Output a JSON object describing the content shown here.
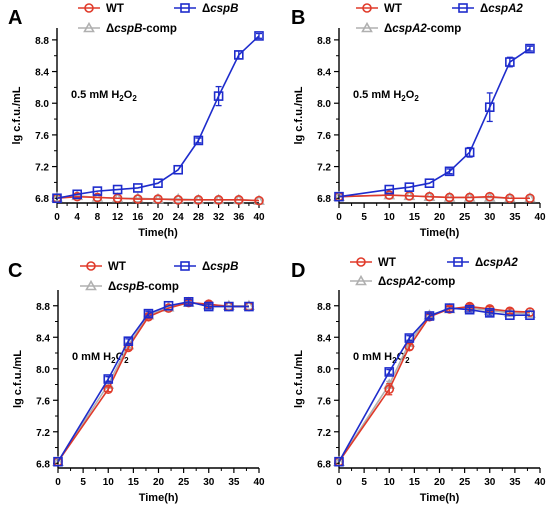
{
  "chart_data": [
    {
      "panel_label": "A",
      "type": "line",
      "condition_label": "0.5 mM H",
      "condition_sub": "2",
      "condition_tail": "O",
      "condition_sub2": "2",
      "xlabel": "Time(h)",
      "ylabel": "lg c.f.u./mL",
      "xlim": [
        0,
        40
      ],
      "ylim": [
        6.74,
        8.95
      ],
      "xticks": [
        0,
        4,
        8,
        12,
        16,
        20,
        24,
        28,
        32,
        36,
        40
      ],
      "yticks": [
        6.8,
        7.2,
        7.6,
        8.0,
        8.4,
        8.8
      ],
      "grid": false,
      "legend": "top",
      "series": [
        {
          "name": "WT",
          "label_parts": [
            "WT"
          ],
          "color": "#e03a2a",
          "marker": "circle",
          "x": [
            0,
            4,
            8,
            12,
            16,
            20,
            24,
            28,
            32,
            36,
            40
          ],
          "y": [
            6.8,
            6.82,
            6.81,
            6.8,
            6.79,
            6.79,
            6.78,
            6.78,
            6.78,
            6.78,
            6.77
          ],
          "err": [
            0.02,
            0.02,
            0.02,
            0.02,
            0.02,
            0.02,
            0.02,
            0.02,
            0.02,
            0.02,
            0.02
          ]
        },
        {
          "name": "ΔcspB",
          "label_parts": [
            "Δ",
            "cspB"
          ],
          "color": "#1e2ccc",
          "marker": "square",
          "x": [
            0,
            4,
            8,
            12,
            16,
            20,
            24,
            28,
            32,
            36,
            40
          ],
          "y": [
            6.8,
            6.85,
            6.89,
            6.91,
            6.93,
            6.99,
            7.16,
            7.53,
            8.09,
            8.61,
            8.85
          ],
          "err": [
            0.02,
            0.02,
            0.02,
            0.02,
            0.02,
            0.02,
            0.02,
            0.03,
            0.12,
            0.05,
            0.03
          ]
        },
        {
          "name": "ΔcspB-comp",
          "label_parts": [
            "Δ",
            "cspB",
            "-comp"
          ],
          "color": "#b0b0b0",
          "marker": "triangle",
          "x": [
            0,
            4,
            8,
            12,
            16,
            20,
            24,
            28,
            32,
            36,
            40
          ],
          "y": [
            6.81,
            6.83,
            6.81,
            6.8,
            6.8,
            6.79,
            6.79,
            6.78,
            6.78,
            6.78,
            6.77
          ],
          "err": [
            0.02,
            0.02,
            0.02,
            0.02,
            0.02,
            0.02,
            0.02,
            0.02,
            0.02,
            0.02,
            0.02
          ]
        }
      ]
    },
    {
      "panel_label": "B",
      "type": "line",
      "condition_label": "0.5 mM H",
      "condition_sub": "2",
      "condition_tail": "O",
      "condition_sub2": "2",
      "xlabel": "Time(h)",
      "ylabel": "lg c.f.u./mL",
      "xlim": [
        0,
        40
      ],
      "ylim": [
        6.74,
        8.95
      ],
      "xticks": [
        0,
        5,
        10,
        15,
        20,
        25,
        30,
        35,
        40
      ],
      "yticks": [
        6.8,
        7.2,
        7.6,
        8.0,
        8.4,
        8.8
      ],
      "grid": false,
      "legend": "top",
      "series": [
        {
          "name": "WT",
          "label_parts": [
            "WT"
          ],
          "color": "#e03a2a",
          "marker": "circle",
          "x": [
            0,
            10,
            14,
            18,
            22,
            26,
            30,
            34,
            38
          ],
          "y": [
            6.82,
            6.84,
            6.83,
            6.82,
            6.81,
            6.81,
            6.82,
            6.8,
            6.8
          ],
          "err": [
            0.02,
            0.02,
            0.02,
            0.02,
            0.02,
            0.02,
            0.02,
            0.02,
            0.02
          ]
        },
        {
          "name": "ΔcspA2",
          "label_parts": [
            "Δ",
            "cspA2"
          ],
          "color": "#1e2ccc",
          "marker": "square",
          "x": [
            0,
            10,
            14,
            18,
            22,
            26,
            30,
            34,
            38
          ],
          "y": [
            6.82,
            6.91,
            6.94,
            6.99,
            7.14,
            7.38,
            7.95,
            8.52,
            8.69
          ],
          "err": [
            0.02,
            0.02,
            0.02,
            0.02,
            0.03,
            0.06,
            0.18,
            0.06,
            0.03
          ]
        },
        {
          "name": "ΔcspA2-comp",
          "label_parts": [
            "Δ",
            "cspA2",
            "-comp"
          ],
          "color": "#b0b0b0",
          "marker": "triangle",
          "x": [
            0,
            10,
            14,
            18,
            22,
            26,
            30,
            34,
            38
          ],
          "y": [
            6.82,
            6.84,
            6.83,
            6.82,
            6.81,
            6.81,
            6.81,
            6.8,
            6.8
          ],
          "err": [
            0.02,
            0.02,
            0.02,
            0.02,
            0.02,
            0.02,
            0.02,
            0.02,
            0.02
          ]
        }
      ]
    },
    {
      "panel_label": "C",
      "type": "line",
      "condition_label": "0 mM H",
      "condition_sub": "2",
      "condition_tail": "O",
      "condition_sub2": "2",
      "xlabel": "Time(h)",
      "ylabel": "lg c.f.u./mL",
      "xlim": [
        0,
        40
      ],
      "ylim": [
        6.74,
        9.0
      ],
      "xticks": [
        0,
        5,
        10,
        15,
        20,
        25,
        30,
        35,
        40
      ],
      "yticks": [
        6.8,
        7.2,
        7.6,
        8.0,
        8.4,
        8.8
      ],
      "grid": false,
      "legend": "top",
      "series": [
        {
          "name": "WT",
          "label_parts": [
            "WT"
          ],
          "color": "#e03a2a",
          "marker": "circle",
          "x": [
            0,
            10,
            14,
            18,
            22,
            26,
            30,
            34,
            38
          ],
          "y": [
            6.82,
            7.74,
            8.27,
            8.66,
            8.77,
            8.84,
            8.82,
            8.79,
            8.79
          ],
          "err": [
            0.02,
            0.03,
            0.03,
            0.03,
            0.02,
            0.03,
            0.03,
            0.02,
            0.02
          ]
        },
        {
          "name": "ΔcspB",
          "label_parts": [
            "Δ",
            "cspB"
          ],
          "color": "#1e2ccc",
          "marker": "square",
          "x": [
            0,
            10,
            14,
            18,
            22,
            26,
            30,
            34,
            38
          ],
          "y": [
            6.82,
            7.87,
            8.35,
            8.7,
            8.8,
            8.85,
            8.79,
            8.79,
            8.79
          ],
          "err": [
            0.02,
            0.03,
            0.03,
            0.03,
            0.02,
            0.03,
            0.03,
            0.02,
            0.02
          ]
        },
        {
          "name": "ΔcspB-comp",
          "label_parts": [
            "Δ",
            "cspB",
            "-comp"
          ],
          "color": "#b0b0b0",
          "marker": "triangle",
          "x": [
            0,
            10,
            14,
            18,
            22,
            26,
            30,
            34,
            38
          ],
          "y": [
            6.82,
            7.8,
            8.3,
            8.68,
            8.78,
            8.84,
            8.81,
            8.8,
            8.8
          ],
          "err": [
            0.02,
            0.03,
            0.03,
            0.03,
            0.02,
            0.03,
            0.03,
            0.02,
            0.02
          ]
        }
      ]
    },
    {
      "panel_label": "D",
      "type": "line",
      "condition_label": "0 mM H",
      "condition_sub": "2",
      "condition_tail": "O",
      "condition_sub2": "2",
      "xlabel": "Time(h)",
      "ylabel": "lg c.f.u./mL",
      "xlim": [
        0,
        40
      ],
      "ylim": [
        6.74,
        9.0
      ],
      "xticks": [
        0,
        5,
        10,
        15,
        20,
        25,
        30,
        35,
        40
      ],
      "yticks": [
        6.8,
        7.2,
        7.6,
        8.0,
        8.4,
        8.8
      ],
      "grid": false,
      "legend": "top",
      "series": [
        {
          "name": "WT",
          "label_parts": [
            "WT"
          ],
          "color": "#e03a2a",
          "marker": "circle",
          "x": [
            0,
            10,
            14,
            18,
            22,
            26,
            30,
            34,
            38
          ],
          "y": [
            6.82,
            7.74,
            8.28,
            8.66,
            8.76,
            8.79,
            8.76,
            8.73,
            8.72
          ],
          "err": [
            0.02,
            0.07,
            0.04,
            0.03,
            0.03,
            0.03,
            0.03,
            0.03,
            0.02
          ]
        },
        {
          "name": "ΔcspA2",
          "label_parts": [
            "Δ",
            "cspA2"
          ],
          "color": "#1e2ccc",
          "marker": "square",
          "x": [
            0,
            10,
            14,
            18,
            22,
            26,
            30,
            34,
            38
          ],
          "y": [
            6.82,
            7.96,
            8.39,
            8.67,
            8.77,
            8.75,
            8.71,
            8.68,
            8.68
          ],
          "err": [
            0.02,
            0.03,
            0.03,
            0.03,
            0.02,
            0.03,
            0.03,
            0.02,
            0.02
          ]
        },
        {
          "name": "ΔcspA2-comp",
          "label_parts": [
            "Δ",
            "cspA2",
            "-comp"
          ],
          "color": "#b0b0b0",
          "marker": "triangle",
          "x": [
            0,
            10,
            14,
            18,
            22,
            26,
            30,
            34,
            38
          ],
          "y": [
            6.82,
            7.8,
            8.33,
            8.68,
            8.76,
            8.77,
            8.74,
            8.71,
            8.7
          ],
          "err": [
            0.02,
            0.04,
            0.03,
            0.03,
            0.02,
            0.03,
            0.03,
            0.02,
            0.02
          ]
        }
      ]
    }
  ]
}
